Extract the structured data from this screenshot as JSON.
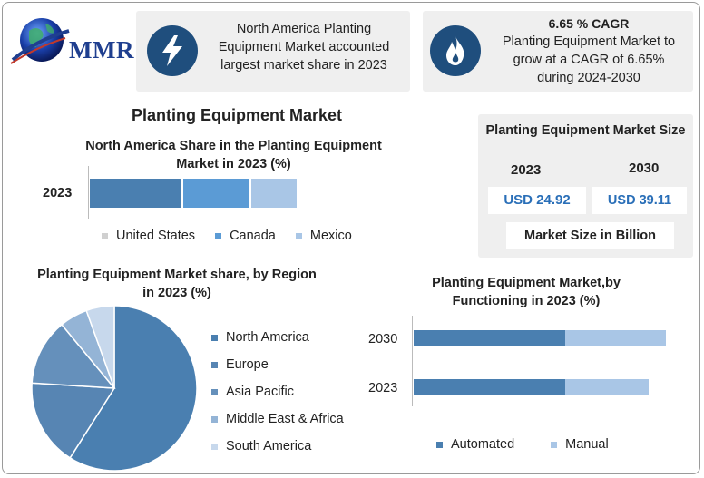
{
  "header": {
    "logo_text": "MMR",
    "card1_text": [
      "North America Planting",
      "Equipment Market accounted",
      "largest market share in 2023"
    ],
    "card1_icon": "lightning-icon",
    "card2_title": "6.65 % CAGR",
    "card2_text": [
      "Planting Equipment Market to",
      "grow at a CAGR of 6.65%",
      "during 2024-2030"
    ],
    "card2_icon": "flame-icon"
  },
  "main_title": "Planting Equipment Market",
  "market_size": {
    "title": "Planting Equipment Market Size",
    "year1": "2023",
    "year2": "2030",
    "value1": "USD 24.92",
    "value2": "USD 39.11",
    "caption": "Market Size in Billion"
  },
  "colors": {
    "dark_blue": "#1f4e7d",
    "mid_blue": "#4a7fb0",
    "bright_blue": "#5b9bd5",
    "light_blue": "#a9c6e6",
    "pale_blue": "#c7d8ec",
    "value_blue": "#2a6fb8"
  },
  "chart_data": [
    {
      "type": "bar",
      "stacked": true,
      "orientation": "horizontal",
      "title": "North America Share in the Planting Equipment Market in 2023 (%)",
      "categories": [
        "2023"
      ],
      "series": [
        {
          "name": "United States",
          "values": [
            45
          ],
          "color": "#4a7fb0"
        },
        {
          "name": "Canada",
          "values": [
            33
          ],
          "color": "#5b9bd5"
        },
        {
          "name": "Mexico",
          "values": [
            22
          ],
          "color": "#a9c6e6"
        }
      ],
      "legend_position": "bottom"
    },
    {
      "type": "pie",
      "title": "Planting Equipment Market share, by Region in 2023 (%)",
      "labels": [
        "North America",
        "Europe",
        "Asia Pacific",
        "Middle East & Africa",
        "South America"
      ],
      "values": [
        59,
        17,
        13,
        5.5,
        5.5
      ],
      "colors": [
        "#4a7fb0",
        "#5785b3",
        "#6590bb",
        "#94b4d6",
        "#c7d8ec"
      ],
      "legend_position": "right"
    },
    {
      "type": "bar",
      "stacked": true,
      "orientation": "horizontal",
      "title": "Planting Equipment Market,by Functioning in 2023 (%)",
      "categories": [
        "2030",
        "2023"
      ],
      "series": [
        {
          "name": "Automated",
          "values": [
            60,
            60
          ],
          "color": "#4a7fb0"
        },
        {
          "name": "Manual",
          "values": [
            40,
            33
          ],
          "color": "#a9c6e6"
        }
      ],
      "legend_position": "bottom"
    }
  ]
}
